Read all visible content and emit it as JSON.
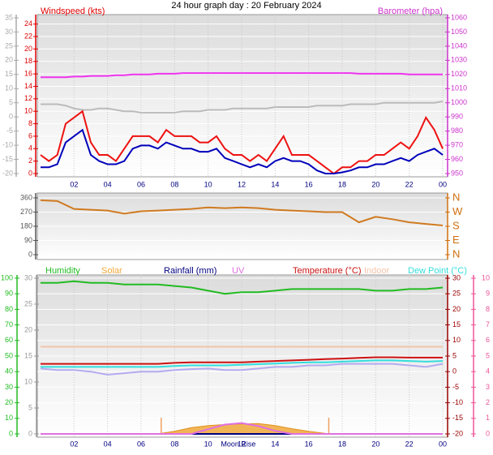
{
  "chart_data": [
    {
      "type": "line",
      "title": "24 hour graph day : 20 February 2024",
      "ylabel": "Windspeed (kts)",
      "y2label": "Barometer (hpa)",
      "ycolor": "#dd0000",
      "y2color": "#cc33cc",
      "y3color": "#aaaaaa",
      "x": [
        0,
        0.5,
        1,
        1.5,
        2,
        2.5,
        3,
        3.5,
        4,
        4.5,
        5,
        5.5,
        6,
        6.5,
        7,
        7.5,
        8,
        8.5,
        9,
        9.5,
        10,
        10.5,
        11,
        11.5,
        12,
        12.5,
        13,
        13.5,
        14,
        14.5,
        15,
        15.5,
        16,
        16.5,
        17,
        17.5,
        18,
        18.5,
        19,
        19.5,
        20,
        20.5,
        21,
        21.5,
        22,
        22.5,
        23,
        23.5,
        24
      ],
      "xlim": [
        0,
        24
      ],
      "xticks": [
        {
          "value": 2,
          "label": "02"
        },
        {
          "value": 4,
          "label": "04"
        },
        {
          "value": 6,
          "label": "06"
        },
        {
          "value": 8,
          "label": "08"
        },
        10,
        12,
        14,
        16,
        18,
        20,
        22,
        {
          "value": 24,
          "label": "00"
        }
      ],
      "ylim": [
        0,
        25
      ],
      "yticks": [
        0,
        2,
        4,
        6,
        8,
        10,
        12,
        14,
        16,
        18,
        20,
        22,
        24
      ],
      "y2lim": [
        950,
        1060
      ],
      "y2ticks": [
        950,
        960,
        970,
        980,
        990,
        1000,
        1010,
        1020,
        1030,
        1040,
        1050,
        1060
      ],
      "y3lim": [
        -20,
        35
      ],
      "y3ticks": [
        -20,
        -15,
        -10,
        -5,
        0,
        5,
        10,
        15,
        20,
        25,
        30,
        35
      ],
      "grid": true,
      "series": [
        {
          "color": "#bbbbbb",
          "axis": "y3",
          "values": [
            4.5,
            4.5,
            4.5,
            4,
            3,
            2.5,
            2.5,
            3,
            3,
            2.5,
            2,
            2,
            1.5,
            1.5,
            1.5,
            1.5,
            1.5,
            2,
            2,
            2,
            2.5,
            2.5,
            2.5,
            3,
            3,
            3,
            3,
            3,
            3.5,
            3.5,
            3.5,
            3.5,
            3.5,
            4,
            4,
            4,
            4,
            4.5,
            4.5,
            4.5,
            4.5,
            5,
            5,
            5,
            5,
            5,
            5,
            5,
            5.5
          ]
        },
        {
          "color": "#ee33ee",
          "axis": "y2",
          "values": [
            1018,
            1018,
            1018,
            1018,
            1018.5,
            1018.5,
            1019,
            1019,
            1019,
            1019.5,
            1019.5,
            1020,
            1020,
            1020,
            1020.5,
            1020.5,
            1020.5,
            1021,
            1021,
            1021,
            1021,
            1021,
            1021,
            1021,
            1021,
            1021,
            1021,
            1021,
            1021,
            1021,
            1021,
            1021,
            1021,
            1021,
            1021,
            1021,
            1021,
            1021,
            1020.5,
            1020.5,
            1020.5,
            1020.5,
            1020.5,
            1020.5,
            1020,
            1020,
            1020,
            1020,
            1020
          ]
        },
        {
          "color": "#ee1111",
          "axis": "y",
          "values": [
            3,
            2,
            3,
            8,
            9,
            10,
            5,
            3,
            3,
            2,
            4,
            6,
            6,
            6,
            5,
            7,
            6,
            6,
            6,
            5,
            5,
            6,
            4,
            3,
            3,
            2,
            3,
            2,
            4,
            6,
            3,
            3,
            3,
            2,
            1,
            0,
            1,
            1,
            2,
            2,
            3,
            3,
            4,
            5,
            4,
            6,
            9,
            7,
            4
          ]
        },
        {
          "color": "#0000bb",
          "axis": "y",
          "values": [
            1,
            1,
            1.5,
            5,
            6,
            7,
            3,
            2,
            1.5,
            1.5,
            2,
            4,
            4.5,
            4.5,
            4,
            5,
            4.5,
            4,
            4,
            3.5,
            3.5,
            4,
            2.5,
            2,
            1.5,
            1,
            1.5,
            1,
            2,
            2.5,
            2,
            2,
            1.5,
            0.5,
            0,
            0,
            0.2,
            0.5,
            1,
            1,
            1.5,
            1.5,
            2,
            2.5,
            2,
            3,
            3.5,
            4,
            3
          ]
        }
      ]
    },
    {
      "type": "line",
      "ycolor": "#555555",
      "y2color": "#d07010",
      "x": [
        0,
        1,
        2,
        3,
        4,
        5,
        6,
        7,
        8,
        9,
        10,
        11,
        12,
        13,
        14,
        15,
        16,
        17,
        18,
        19,
        20,
        21,
        22,
        23,
        24
      ],
      "xlim": [
        0,
        24
      ],
      "ylim": [
        0,
        360
      ],
      "yticks": [
        0,
        90,
        180,
        270,
        360
      ],
      "y2lim": [
        0,
        360
      ],
      "y2ticks": [
        {
          "value": 0,
          "label": "N"
        },
        {
          "value": 90,
          "label": "E"
        },
        {
          "value": 180,
          "label": "S"
        },
        {
          "value": 270,
          "label": "W"
        },
        {
          "value": 360,
          "label": "N"
        }
      ],
      "grid": true,
      "series": [
        {
          "color": "#d07a20",
          "axis": "y",
          "values": [
            345,
            340,
            290,
            285,
            280,
            260,
            275,
            280,
            285,
            290,
            300,
            295,
            300,
            295,
            285,
            280,
            275,
            270,
            270,
            205,
            240,
            225,
            205,
            195,
            185
          ]
        }
      ]
    },
    {
      "type": "line",
      "ycolor": "#22bb22",
      "y2color": "#990000",
      "y3color": "#999999",
      "y4color": "#ee5599",
      "x": [
        0,
        1,
        2,
        3,
        4,
        5,
        6,
        7,
        8,
        9,
        10,
        11,
        12,
        13,
        14,
        15,
        16,
        17,
        18,
        19,
        20,
        21,
        22,
        23,
        24
      ],
      "xlim": [
        0,
        24
      ],
      "xticks": [
        {
          "value": 2,
          "label": "02"
        },
        {
          "value": 4,
          "label": "04"
        },
        {
          "value": 6,
          "label": "06"
        },
        {
          "value": 8,
          "label": "08"
        },
        10,
        12,
        14,
        16,
        18,
        20,
        22,
        {
          "value": 24,
          "label": "00"
        }
      ],
      "ylim": [
        0,
        100
      ],
      "yticks": [
        0,
        10,
        20,
        30,
        40,
        50,
        60,
        70,
        80,
        90,
        100
      ],
      "y2lim": [
        -20,
        30
      ],
      "y2ticks": [
        -20,
        -15,
        -10,
        -5,
        0,
        5,
        10,
        15,
        20,
        25,
        30
      ],
      "y3lim": [
        0,
        30
      ],
      "y3ticks": [
        0,
        5,
        10,
        15,
        20,
        25,
        30
      ],
      "y4lim": [
        0,
        10
      ],
      "y4ticks": [
        0,
        1,
        2,
        3,
        4,
        5,
        6,
        7,
        8,
        9,
        10
      ],
      "grid": true,
      "vlines": [
        7.2,
        17.2
      ],
      "vline_color": "#f0a060",
      "annotations": [
        {
          "text": "Moon Rise",
          "x": 11.8
        }
      ],
      "series": [
        {
          "name": "Humidity",
          "color": "#22bb22",
          "axis": "y",
          "values": [
            97,
            97,
            98,
            97,
            97,
            96,
            96,
            96,
            95,
            94,
            92,
            90,
            91,
            91,
            92,
            93,
            93,
            93,
            93,
            93,
            92,
            92,
            93,
            93,
            94
          ]
        },
        {
          "name": "Solar",
          "color": "#f0a838",
          "axis": "y3",
          "style": "area",
          "values": [
            0,
            0,
            0,
            0,
            0,
            0,
            0,
            0,
            0.5,
            1.2,
            1.6,
            1.8,
            1.9,
            2,
            1.6,
            1,
            0.5,
            0.1,
            0,
            0,
            0,
            0,
            0,
            0,
            0
          ]
        },
        {
          "name": "Rainfall (mm)",
          "color": "#000080",
          "axis": "y3",
          "values": [
            0,
            0,
            0,
            0,
            0,
            0,
            0,
            0,
            0,
            0,
            0,
            0,
            0,
            0,
            0,
            0,
            0,
            0,
            0,
            0,
            0,
            0,
            0,
            0,
            0
          ]
        },
        {
          "name": "UV",
          "color": "#e070e0",
          "axis": "y4",
          "values": [
            0,
            0,
            0,
            0,
            0,
            0,
            0,
            0,
            0,
            0,
            0.3,
            0.6,
            0.7,
            0.5,
            0.2,
            0,
            0,
            0,
            0,
            0,
            0,
            0,
            0,
            0,
            0
          ]
        },
        {
          "name": "Temperature (°C)",
          "color": "#cc1111",
          "axis": "y2",
          "values": [
            2.5,
            2.5,
            2.5,
            2.5,
            2.5,
            2.5,
            2.5,
            2.5,
            2.8,
            3,
            3,
            3,
            3,
            3.2,
            3.4,
            3.6,
            3.8,
            4,
            4.2,
            4.4,
            4.6,
            4.6,
            4.5,
            4.5,
            4.5
          ]
        },
        {
          "name": "Indoor",
          "color": "#f4c4aa",
          "axis": "y2",
          "values": [
            8,
            8,
            8,
            8,
            8,
            8,
            8,
            8,
            8,
            8,
            8,
            8,
            8,
            8,
            8,
            8,
            8,
            8,
            8,
            8,
            8,
            8,
            8,
            8,
            8
          ]
        },
        {
          "name": "Dew Point (°C)",
          "color": "#33dddd",
          "axis": "y2",
          "values": [
            1.5,
            1.5,
            1.5,
            1.5,
            1.5,
            1.5,
            1.5,
            1.5,
            1.8,
            2,
            2,
            2,
            2.2,
            2.4,
            2.6,
            2.8,
            3,
            3,
            3.2,
            3.4,
            3.6,
            3.6,
            3.4,
            3.2,
            3.4
          ]
        },
        {
          "color": "#b4aaf0",
          "axis": "y2",
          "values": [
            1,
            0.5,
            0.5,
            0,
            -1,
            -0.5,
            0,
            0,
            0.5,
            0.8,
            1,
            0.5,
            0.5,
            1,
            1.5,
            1.5,
            2,
            2,
            2.5,
            2.5,
            2.5,
            2.5,
            2,
            1.5,
            2.5
          ]
        }
      ]
    }
  ]
}
